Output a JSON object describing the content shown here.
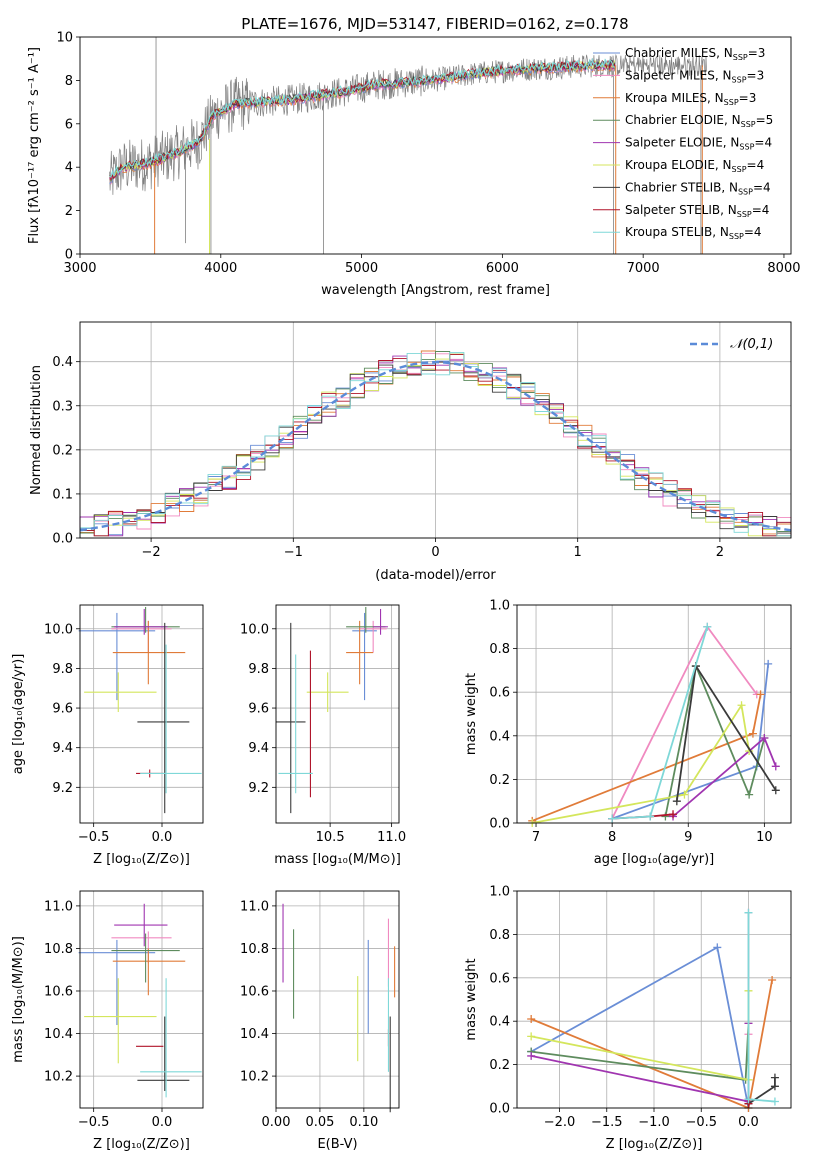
{
  "title": "PLATE=1676, MJD=53147, FIBERID=0162, z=0.178",
  "colors": {
    "Chabrier MILES": "#6a8ed6",
    "Salpeter MILES": "#f08ac0",
    "Kroupa MILES": "#e07b39",
    "Chabrier ELODIE": "#5e8c5e",
    "Salpeter ELODIE": "#a035b0",
    "Kroupa ELODIE": "#d4e65c",
    "Chabrier STELIB": "#3b3b3b",
    "Salpeter STELIB": "#b0142a",
    "Kroupa STELIB": "#7fd8d8",
    "data": "#808080",
    "normal": "#5b8bd8"
  },
  "chart_data": [
    {
      "id": "spectrum",
      "type": "line",
      "xlabel": "wavelength [Angstrom, rest frame]",
      "ylabel": "Flux [f_λ 10^-17 erg cm^-2 s^-1 A^-1]",
      "xlim": [
        3000,
        8050
      ],
      "ylim": [
        0,
        10
      ],
      "xticks": [
        3000,
        4000,
        5000,
        6000,
        7000,
        8000
      ],
      "yticks": [
        0,
        2,
        4,
        6,
        8,
        10
      ],
      "legend_position": "upper-right",
      "legend": [
        {
          "model": "Chabrier MILES",
          "nssp": "3"
        },
        {
          "model": "Salpeter MILES",
          "nssp": "3"
        },
        {
          "model": "Kroupa MILES",
          "nssp": "3"
        },
        {
          "model": "Chabrier ELODIE",
          "nssp": "5"
        },
        {
          "model": "Salpeter ELODIE",
          "nssp": "4"
        },
        {
          "model": "Kroupa ELODIE",
          "nssp": "4"
        },
        {
          "model": "Chabrier STELIB",
          "nssp": "4"
        },
        {
          "model": "Salpeter STELIB",
          "nssp": "4"
        },
        {
          "model": "Kroupa STELIB",
          "nssp": "4"
        }
      ],
      "continuum": [
        [
          3210,
          3.4
        ],
        [
          3300,
          4.0
        ],
        [
          3500,
          4.2
        ],
        [
          3700,
          4.7
        ],
        [
          3850,
          5.2
        ],
        [
          3950,
          6.4
        ],
        [
          4100,
          6.9
        ],
        [
          4300,
          7.0
        ],
        [
          4500,
          7.1
        ],
        [
          4700,
          7.3
        ],
        [
          4900,
          7.5
        ],
        [
          5100,
          7.8
        ],
        [
          5300,
          7.9
        ],
        [
          5500,
          8.0
        ],
        [
          5800,
          8.3
        ],
        [
          6100,
          8.5
        ],
        [
          6400,
          8.6
        ],
        [
          6700,
          8.7
        ],
        [
          6800,
          8.7
        ]
      ],
      "grid": false
    },
    {
      "id": "residuals",
      "type": "histogram",
      "xlabel": "(data-model)/error",
      "ylabel": "Normed distribution",
      "xlim": [
        -2.5,
        2.5
      ],
      "ylim": [
        0,
        0.49
      ],
      "xticks": [
        -2,
        -1,
        0,
        1,
        2
      ],
      "yticks": [
        0.0,
        0.1,
        0.2,
        0.3,
        0.4
      ],
      "legend": "𝒩(0,1)",
      "legend_position": "upper-right",
      "grid": true
    },
    {
      "id": "age_vs_Z",
      "type": "errorbar",
      "xlabel": "Z [log10(Z/Z⊙)]",
      "ylabel": "age  [log10(age/yr)]",
      "xlim": [
        -0.6,
        0.3
      ],
      "ylim": [
        9.02,
        10.12
      ],
      "xticks": [
        -0.5,
        0.0
      ],
      "yticks": [
        9.2,
        9.4,
        9.6,
        9.8,
        10.0
      ],
      "points": [
        {
          "model": "Chabrier MILES",
          "x": -0.33,
          "y": 9.99,
          "xerr": [
            0.28,
            0.28
          ],
          "yerr": [
            0.35,
            0.09
          ]
        },
        {
          "model": "Salpeter MILES",
          "x": -0.1,
          "y": 10.0,
          "xerr": [
            0.27,
            0.17
          ],
          "yerr": [
            0.12,
            0.04
          ]
        },
        {
          "model": "Kroupa MILES",
          "x": -0.1,
          "y": 9.88,
          "xerr": [
            0.26,
            0.27
          ],
          "yerr": [
            0.16,
            0.16
          ]
        },
        {
          "model": "Chabrier ELODIE",
          "x": -0.12,
          "y": 10.01,
          "xerr": [
            0.25,
            0.25
          ],
          "yerr": [
            0.03,
            0.1
          ]
        },
        {
          "model": "Salpeter ELODIE",
          "x": -0.13,
          "y": 10.01,
          "xerr": [
            0.22,
            0.17
          ],
          "yerr": [
            0.04,
            0.09
          ]
        },
        {
          "model": "Kroupa ELODIE",
          "x": -0.32,
          "y": 9.68,
          "xerr": [
            0.25,
            0.28
          ],
          "yerr": [
            0.1,
            0.1
          ]
        },
        {
          "model": "Chabrier STELIB",
          "x": 0.02,
          "y": 9.53,
          "xerr": [
            0.2,
            0.18
          ],
          "yerr": [
            0.46,
            0.5
          ]
        },
        {
          "model": "Salpeter STELIB",
          "x": -0.09,
          "y": 9.27,
          "xerr": [
            0.1,
            0.1
          ],
          "yerr": [
            0.02,
            0.02
          ]
        },
        {
          "model": "Kroupa STELIB",
          "x": 0.03,
          "y": 9.27,
          "xerr": [
            0.19,
            0.26
          ],
          "yerr": [
            0.1,
            0.65
          ]
        }
      ],
      "grid": true
    },
    {
      "id": "age_vs_mass",
      "type": "errorbar",
      "xlabel": "mass [log10(M/M⊙)]",
      "ylabel": "",
      "xlim": [
        10.06,
        11.06
      ],
      "ylim": [
        9.02,
        10.12
      ],
      "xticks": [
        10.5,
        11.0
      ],
      "yticks": [
        9.2,
        9.4,
        9.6,
        9.8,
        10.0
      ],
      "points": [
        {
          "model": "Chabrier MILES",
          "x": 10.78,
          "y": 9.99,
          "xerr": [
            0.1,
            0.1
          ],
          "yerr": [
            0.35,
            0.09
          ]
        },
        {
          "model": "Salpeter MILES",
          "x": 10.85,
          "y": 10.0,
          "xerr": [
            0.11,
            0.11
          ],
          "yerr": [
            0.12,
            0.04
          ]
        },
        {
          "model": "Kroupa MILES",
          "x": 10.74,
          "y": 9.88,
          "xerr": [
            0.11,
            0.11
          ],
          "yerr": [
            0.16,
            0.16
          ]
        },
        {
          "model": "Chabrier ELODIE",
          "x": 10.79,
          "y": 10.01,
          "xerr": [
            0.16,
            0.16
          ],
          "yerr": [
            0.03,
            0.1
          ]
        },
        {
          "model": "Salpeter ELODIE",
          "x": 10.91,
          "y": 10.01,
          "xerr": [
            0.06,
            0.06
          ],
          "yerr": [
            0.04,
            0.09
          ]
        },
        {
          "model": "Kroupa ELODIE",
          "x": 10.48,
          "y": 9.68,
          "xerr": [
            0.17,
            0.17
          ],
          "yerr": [
            0.1,
            0.1
          ]
        },
        {
          "model": "Chabrier STELIB",
          "x": 10.18,
          "y": 9.53,
          "xerr": [
            0.12,
            0.12
          ],
          "yerr": [
            0.46,
            0.5
          ]
        },
        {
          "model": "Salpeter STELIB",
          "x": 10.34,
          "y": 9.27,
          "xerr": [
            0.01,
            0.01
          ],
          "yerr": [
            0.12,
            0.62
          ]
        },
        {
          "model": "Kroupa STELIB",
          "x": 10.22,
          "y": 9.27,
          "xerr": [
            0.14,
            0.14
          ],
          "yerr": [
            0.1,
            0.6
          ]
        }
      ],
      "grid": true
    },
    {
      "id": "weight_vs_age",
      "type": "line",
      "xlabel": "age  [log10(age/yr)]",
      "ylabel": "mass weight",
      "xlim": [
        6.75,
        10.35
      ],
      "ylim": [
        0,
        1
      ],
      "xticks": [
        7,
        8,
        9,
        10
      ],
      "yticks": [
        0.0,
        0.2,
        0.4,
        0.6,
        0.8,
        1.0
      ],
      "series": [
        {
          "model": "Chabrier MILES",
          "x": [
            8.0,
            9.9,
            10.05
          ],
          "y": [
            0.02,
            0.26,
            0.73
          ]
        },
        {
          "model": "Salpeter MILES",
          "x": [
            8.0,
            9.25,
            9.9
          ],
          "y": [
            0.02,
            0.9,
            0.59
          ]
        },
        {
          "model": "Kroupa MILES",
          "x": [
            6.95,
            9.85,
            9.95
          ],
          "y": [
            0.01,
            0.41,
            0.59
          ]
        },
        {
          "model": "Chabrier ELODIE",
          "x": [
            8.7,
            9.1,
            9.8,
            10.0
          ],
          "y": [
            0.03,
            0.72,
            0.13,
            0.39
          ]
        },
        {
          "model": "Salpeter ELODIE",
          "x": [
            8.8,
            10.0,
            10.15
          ],
          "y": [
            0.03,
            0.39,
            0.26
          ]
        },
        {
          "model": "Kroupa ELODIE",
          "x": [
            6.95,
            8.95,
            9.7,
            9.8
          ],
          "y": [
            0.0,
            0.13,
            0.54,
            0.33
          ]
        },
        {
          "model": "Chabrier STELIB",
          "x": [
            8.85,
            9.1,
            10.15
          ],
          "y": [
            0.1,
            0.72,
            0.15
          ]
        },
        {
          "model": "Salpeter STELIB",
          "x": [
            8.0,
            8.5,
            8.8
          ],
          "y": [
            0.02,
            0.03,
            0.04
          ]
        },
        {
          "model": "Kroupa STELIB",
          "x": [
            8.0,
            8.5,
            9.25
          ],
          "y": [
            0.02,
            0.03,
            0.9
          ]
        }
      ],
      "grid": true
    },
    {
      "id": "mass_vs_Z",
      "type": "errorbar",
      "xlabel": "Z [log10(Z/Z⊙)]",
      "ylabel": "mass [log10(M/M⊙)]",
      "xlim": [
        -0.6,
        0.3
      ],
      "ylim": [
        10.05,
        11.07
      ],
      "xticks": [
        -0.5,
        0.0
      ],
      "yticks": [
        10.2,
        10.4,
        10.6,
        10.8,
        11.0
      ],
      "points": [
        {
          "model": "Chabrier MILES",
          "x": -0.33,
          "y": 10.78,
          "xerr": [
            0.28,
            0.28
          ],
          "yerr": [
            0.34,
            0.06
          ]
        },
        {
          "model": "Salpeter MILES",
          "x": -0.1,
          "y": 10.85,
          "xerr": [
            0.27,
            0.17
          ],
          "yerr": [
            0.12,
            0.03
          ]
        },
        {
          "model": "Kroupa MILES",
          "x": -0.1,
          "y": 10.74,
          "xerr": [
            0.26,
            0.27
          ],
          "yerr": [
            0.16,
            0.06
          ]
        },
        {
          "model": "Chabrier ELODIE",
          "x": -0.12,
          "y": 10.79,
          "xerr": [
            0.25,
            0.25
          ],
          "yerr": [
            0.15,
            0.08
          ]
        },
        {
          "model": "Salpeter ELODIE",
          "x": -0.13,
          "y": 10.91,
          "xerr": [
            0.22,
            0.17
          ],
          "yerr": [
            0.1,
            0.1
          ]
        },
        {
          "model": "Kroupa ELODIE",
          "x": -0.32,
          "y": 10.48,
          "xerr": [
            0.25,
            0.28
          ],
          "yerr": [
            0.22,
            0.18
          ]
        },
        {
          "model": "Chabrier STELIB",
          "x": 0.02,
          "y": 10.18,
          "xerr": [
            0.2,
            0.18
          ],
          "yerr": [
            0.05,
            0.3
          ]
        },
        {
          "model": "Salpeter STELIB",
          "x": -0.09,
          "y": 10.34,
          "xerr": [
            0.1,
            0.1
          ],
          "yerr": [
            0.0,
            0.0
          ]
        },
        {
          "model": "Kroupa STELIB",
          "x": 0.03,
          "y": 10.22,
          "xerr": [
            0.19,
            0.26
          ],
          "yerr": [
            0.12,
            0.44
          ]
        }
      ],
      "grid": true
    },
    {
      "id": "mass_vs_ebv",
      "type": "errorbar",
      "xlabel": "E(B-V)",
      "ylabel": "",
      "xlim": [
        0.0,
        0.14
      ],
      "ylim": [
        10.05,
        11.07
      ],
      "xticks": [
        0.0,
        0.05,
        0.1
      ],
      "yticks": [
        10.2,
        10.4,
        10.6,
        10.8,
        11.0
      ],
      "points": [
        {
          "model": "Chabrier MILES",
          "x": 0.105,
          "y": 10.62,
          "yerr": [
            0.22,
            0.22
          ]
        },
        {
          "model": "Salpeter MILES",
          "x": 0.128,
          "y": 10.8,
          "yerr": [
            0.18,
            0.14
          ]
        },
        {
          "model": "Kroupa MILES",
          "x": 0.135,
          "y": 10.69,
          "yerr": [
            0.12,
            0.12
          ]
        },
        {
          "model": "Chabrier ELODIE",
          "x": 0.02,
          "y": 10.68,
          "yerr": [
            0.21,
            0.21
          ]
        },
        {
          "model": "Salpeter ELODIE",
          "x": 0.008,
          "y": 10.83,
          "yerr": [
            0.19,
            0.18
          ]
        },
        {
          "model": "Kroupa ELODIE",
          "x": 0.093,
          "y": 10.47,
          "yerr": [
            0.2,
            0.2
          ]
        },
        {
          "model": "Chabrier STELIB",
          "x": 0.13,
          "y": 10.3,
          "yerr": [
            0.27,
            0.18
          ]
        },
        {
          "model": "Salpeter STELIB",
          "x": 0.128,
          "y": 10.38,
          "yerr": [
            0.04,
            0.04
          ]
        },
        {
          "model": "Kroupa STELIB",
          "x": 0.128,
          "y": 10.42,
          "yerr": [
            0.2,
            0.24
          ]
        }
      ],
      "grid": true
    },
    {
      "id": "weight_vs_Z",
      "type": "line",
      "xlabel": "Z [log10(Z/Z⊙)]",
      "ylabel": "mass weight",
      "xlim": [
        -2.45,
        0.45
      ],
      "ylim": [
        0,
        1
      ],
      "xticks": [
        -2.0,
        -1.5,
        -1.0,
        -0.5,
        0.0
      ],
      "yticks": [
        0.0,
        0.2,
        0.4,
        0.6,
        0.8,
        1.0
      ],
      "series": [
        {
          "model": "Chabrier MILES",
          "x": [
            -2.3,
            -0.33,
            0.0
          ],
          "y": [
            0.26,
            0.74,
            0.0
          ]
        },
        {
          "model": "Salpeter MILES",
          "x": [
            0.0,
            0.0,
            0.0
          ],
          "y": [
            0.9,
            0.34,
            0.02
          ]
        },
        {
          "model": "Kroupa MILES",
          "x": [
            -2.3,
            0.0,
            0.25
          ],
          "y": [
            0.41,
            0.0,
            0.59
          ]
        },
        {
          "model": "Chabrier ELODIE",
          "x": [
            -2.3,
            -0.03,
            0.0
          ],
          "y": [
            0.26,
            0.13,
            0.39
          ]
        },
        {
          "model": "Salpeter ELODIE",
          "x": [
            -2.3,
            0.0,
            0.0
          ],
          "y": [
            0.24,
            0.03,
            0.39
          ]
        },
        {
          "model": "Kroupa ELODIE",
          "x": [
            -2.3,
            0.0,
            0.0
          ],
          "y": [
            0.33,
            0.13,
            0.54
          ]
        },
        {
          "model": "Chabrier STELIB",
          "x": [
            0.0,
            0.0,
            0.28,
            0.28
          ],
          "y": [
            0.02,
            0.02,
            0.1,
            0.14
          ]
        },
        {
          "model": "Salpeter STELIB",
          "x": [
            0.0,
            0.0
          ],
          "y": [
            0.02,
            0.04
          ]
        },
        {
          "model": "Kroupa STELIB",
          "x": [
            0.0,
            0.0,
            0.28
          ],
          "y": [
            0.9,
            0.04,
            0.03
          ]
        }
      ],
      "grid": true
    }
  ]
}
